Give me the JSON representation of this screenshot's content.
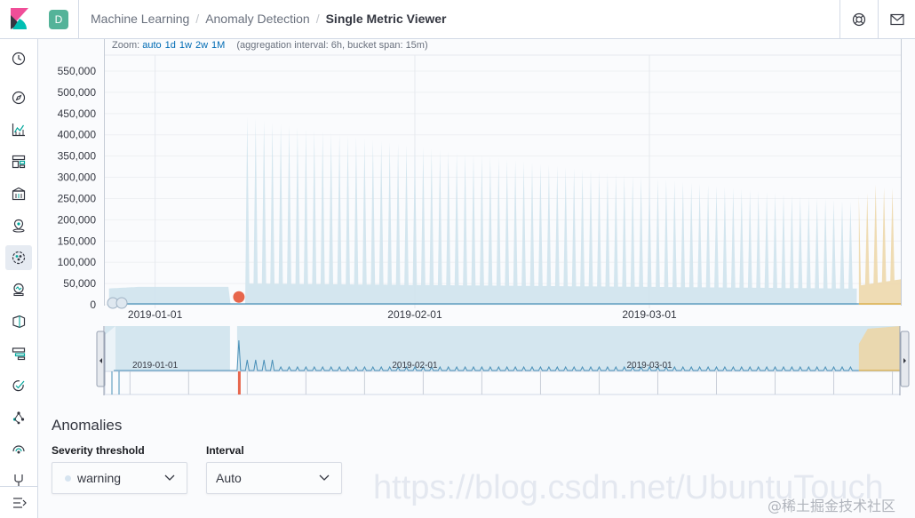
{
  "breadcrumbs": [
    "Machine Learning",
    "Anomaly Detection",
    "Single Metric Viewer"
  ],
  "space_badge": "D",
  "zoom": {
    "label": "Zoom:",
    "options": [
      "auto",
      "1d",
      "1w",
      "2w",
      "1M"
    ],
    "info": "(aggregation interval: 6h, bucket span: 15m)"
  },
  "nav_icons": [
    "clock-icon",
    "compass-icon",
    "visualize-icon",
    "dashboard-icon",
    "canvas-icon",
    "maps-icon",
    "machine-learning-icon",
    "metrics-icon",
    "logs-icon",
    "apm-icon",
    "uptime-icon",
    "graph-icon",
    "monitoring-icon",
    "management-icon"
  ],
  "chart_data": {
    "type": "area",
    "ylim": [
      0,
      550000
    ],
    "y_ticks": [
      "550,000",
      "500,000",
      "450,000",
      "400,000",
      "350,000",
      "300,000",
      "250,000",
      "200,000",
      "150,000",
      "100,000",
      "50,000",
      "0"
    ],
    "x_ticks": [
      "2019-01-01",
      "2019-02-01",
      "2019-03-01"
    ],
    "context_x_ticks": [
      "2019-01-01",
      "2019-02-01",
      "2019-03-01"
    ],
    "x_range": [
      "2018-12-26",
      "2019-03-31"
    ],
    "series": [
      {
        "name": "model bounds",
        "color": "#cfe3ed"
      },
      {
        "name": "actual",
        "color": "#4a90b8"
      },
      {
        "name": "forecast",
        "color": "#ecd6a7"
      }
    ],
    "baseline_before_spike": 42000,
    "spike_peak": 450000,
    "weekly_peak_end": 240000,
    "forecast_peak": 285000,
    "anomaly": {
      "date": "2019-01-11",
      "value": 10000,
      "severity_color": "#e7664c"
    }
  },
  "anomalies": {
    "title": "Anomalies",
    "severity_label": "Severity threshold",
    "severity_value": "warning",
    "interval_label": "Interval",
    "interval_value": "Auto"
  },
  "watermark": "https://blog.csdn.net/UbuntuTouch",
  "watermark2": "@稀土掘金技术社区",
  "colors": {
    "accent": "#006bb4",
    "badge": "#54b399",
    "anomaly": "#e7664c"
  }
}
